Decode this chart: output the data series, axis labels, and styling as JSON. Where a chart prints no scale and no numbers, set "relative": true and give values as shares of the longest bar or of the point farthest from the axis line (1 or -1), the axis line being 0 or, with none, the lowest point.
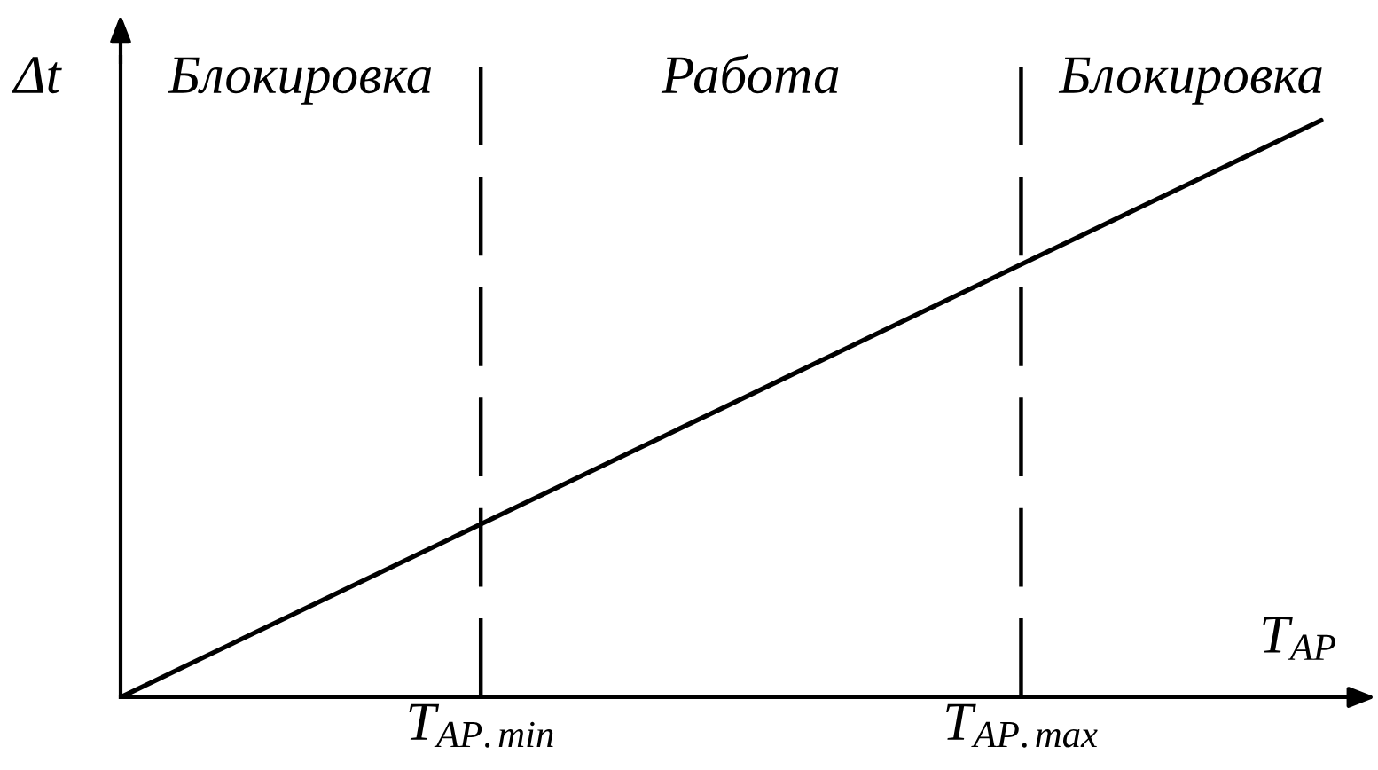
{
  "chart_data": {
    "type": "line",
    "relative": true,
    "xlabel": "T$_{AP}$",
    "ylabel": "Δt",
    "categories": [
      null,
      null,
      null,
      null,
      null,
      null,
      "T$_{AP.min}$",
      null,
      null,
      null,
      null,
      null,
      null,
      null,
      null,
      "T$_{AP.max}$",
      null,
      null,
      null,
      null,
      null
    ],
    "series": [
      {
        "color": "#000000",
        "values": [
          0,
          0.05,
          0.1,
          0.15,
          0.2,
          0.25,
          0.3,
          0.35,
          0.4,
          0.45,
          0.5,
          0.55,
          0.6,
          0.65,
          0.7,
          0.75,
          0.8,
          0.85,
          0.9,
          0.95,
          1
        ]
      }
    ],
    "grid": "x",
    "annotations": [
      "Блокировка",
      "Работа",
      "Блокировка"
    ],
    "tick_labels": "x"
  }
}
